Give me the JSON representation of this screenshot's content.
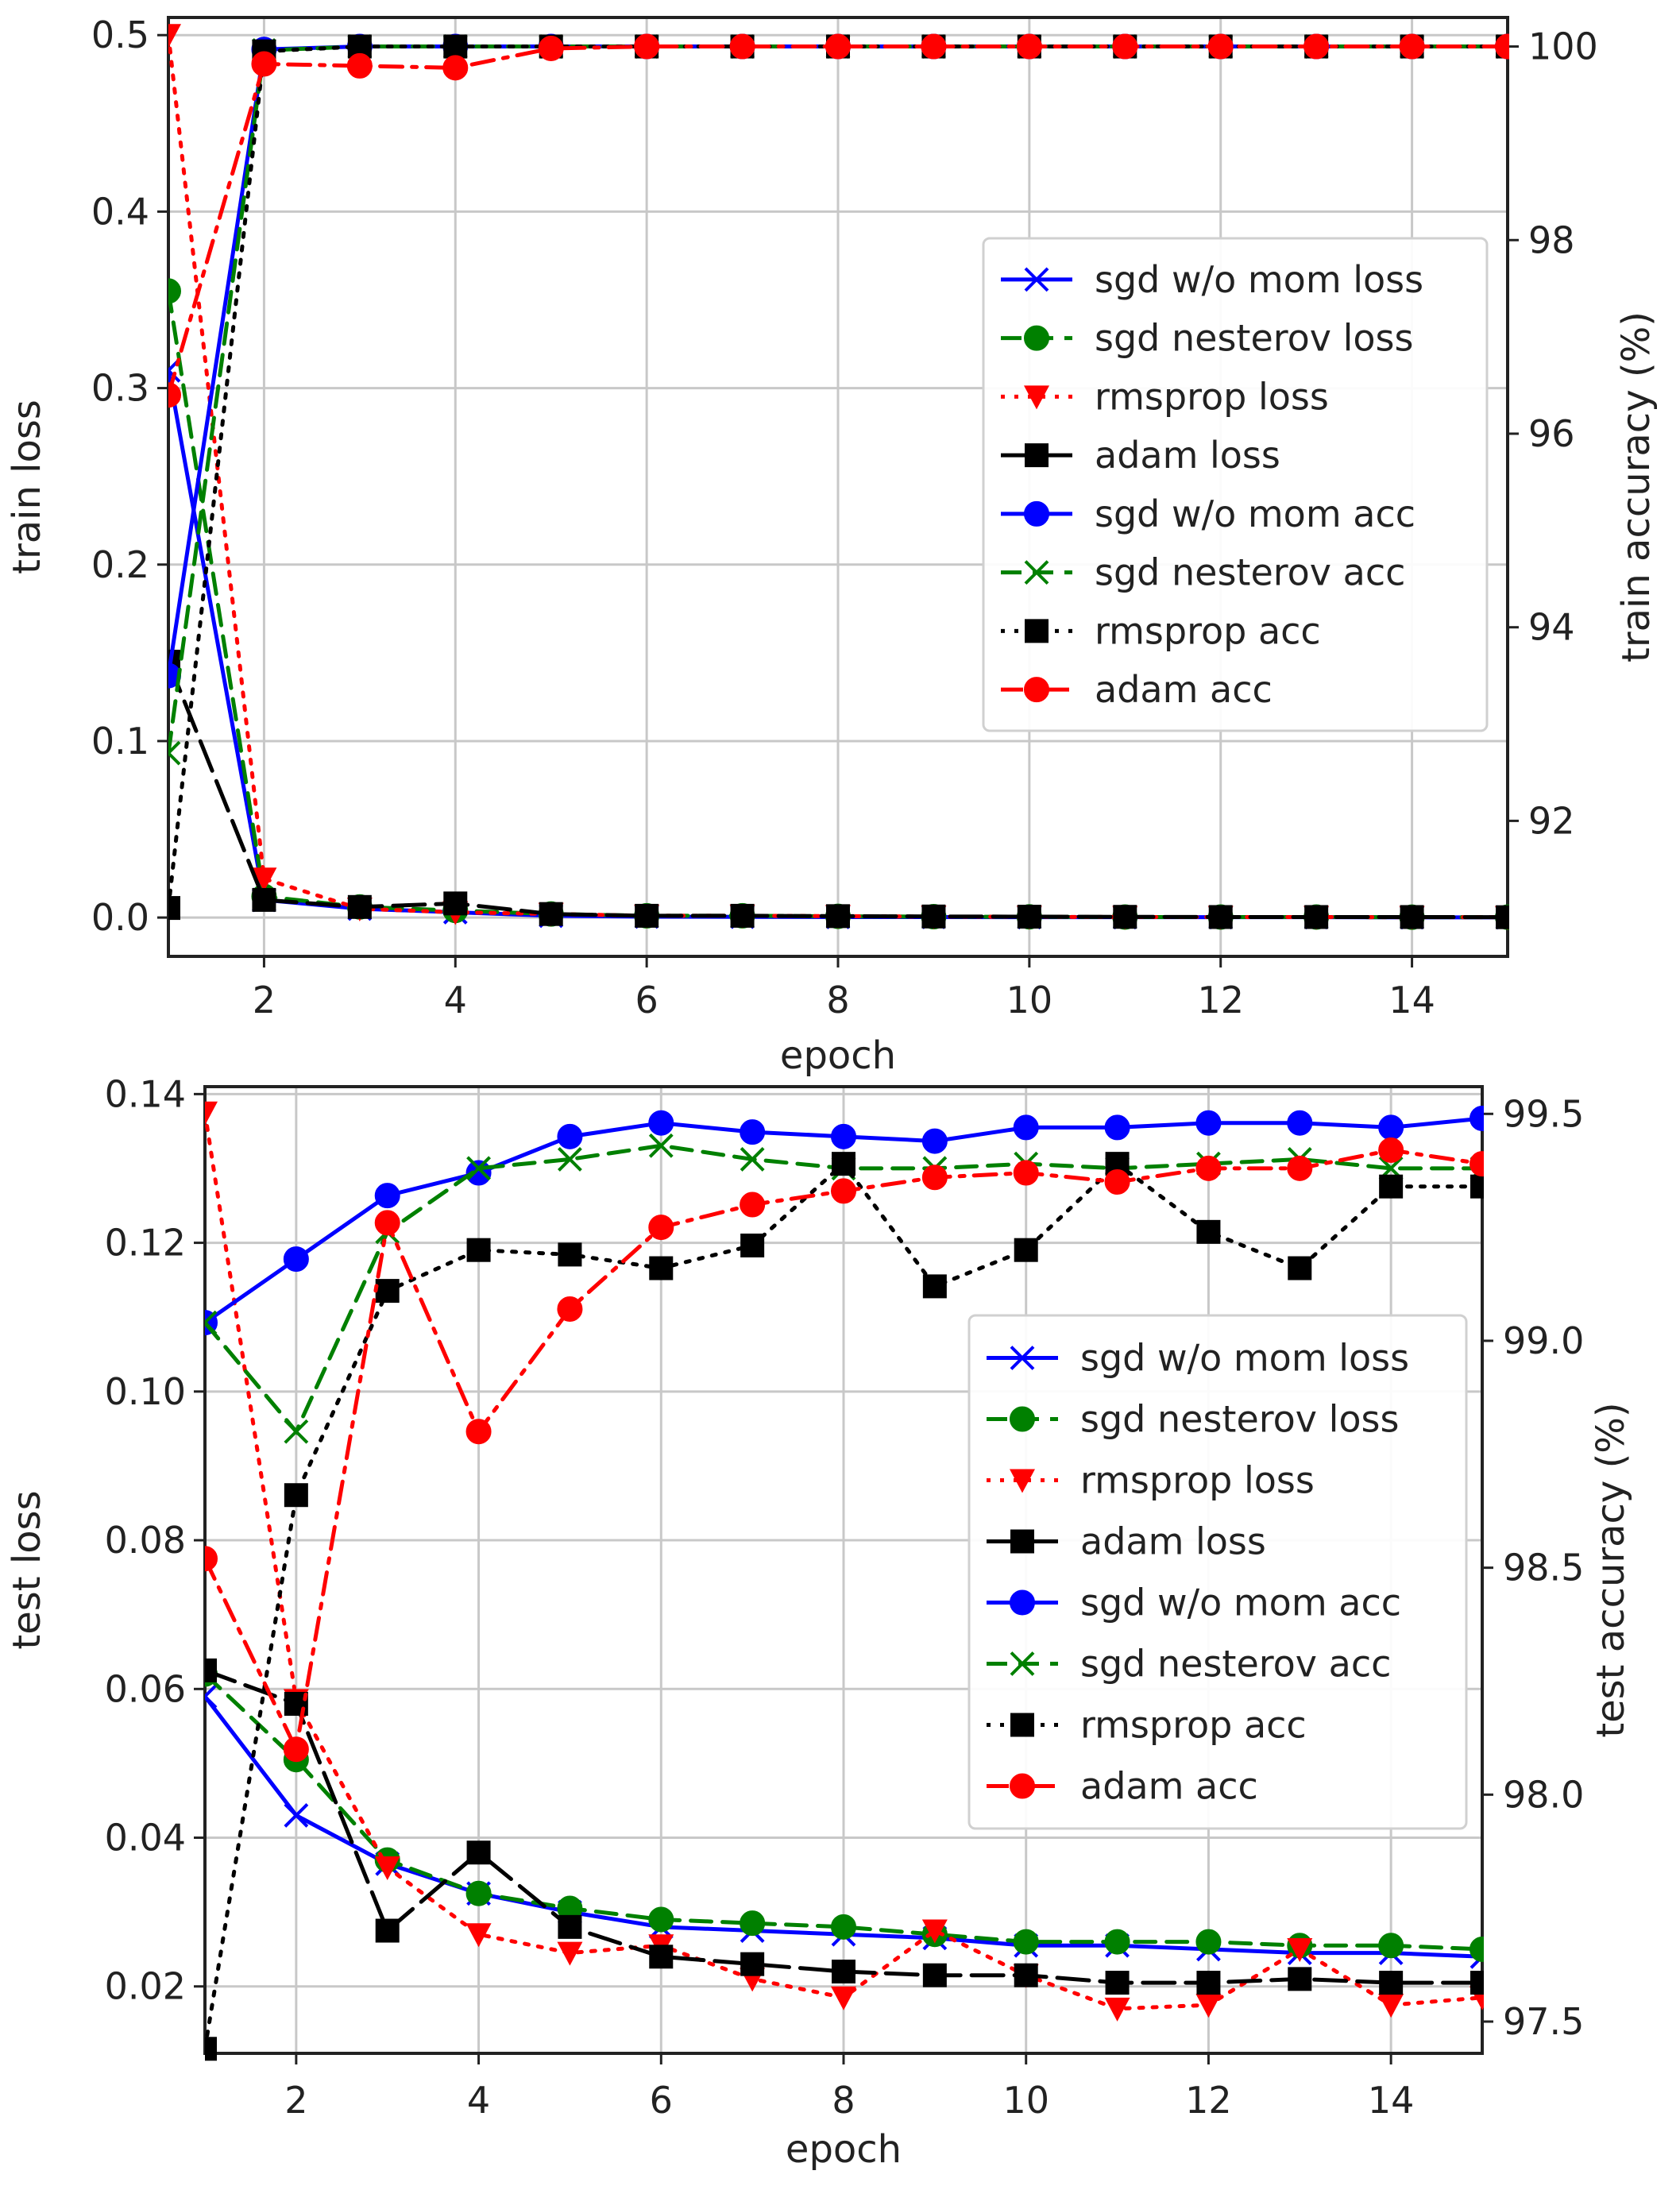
{
  "chart_data": [
    {
      "type": "line",
      "id": "train",
      "xlabel": "epoch",
      "ylabel": "train loss",
      "y2label": "train accuracy (%)",
      "xlim": [
        1,
        15
      ],
      "ylim": [
        -0.022,
        0.51
      ],
      "y2lim": [
        90.6,
        100.3
      ],
      "xticks": [
        2,
        4,
        6,
        8,
        10,
        12,
        14
      ],
      "yticks": [
        0.0,
        0.1,
        0.2,
        0.3,
        0.4,
        0.5
      ],
      "ytick_labels": [
        "0.0",
        "0.1",
        "0.2",
        "0.3",
        "0.4",
        "0.5"
      ],
      "y2ticks": [
        92,
        94,
        96,
        98,
        100
      ],
      "y2tick_labels": [
        "92",
        "94",
        "96",
        "98",
        "100"
      ],
      "x": [
        1,
        2,
        3,
        4,
        5,
        6,
        7,
        8,
        9,
        10,
        11,
        12,
        13,
        14,
        15
      ],
      "legend_position": "center-right",
      "series": [
        {
          "name": "sgd w/o mom loss",
          "axis": "left",
          "color": "#0000ff",
          "dash": "",
          "marker": "x",
          "values": [
            0.31,
            0.01,
            0.005,
            0.003,
            0.001,
            0.0005,
            0.0004,
            0.0003,
            0.0003,
            0.0002,
            0.0002,
            0.0002,
            0.0002,
            0.0001,
            0.0001
          ]
        },
        {
          "name": "sgd nesterov loss",
          "axis": "left",
          "color": "#008000",
          "dash": "dash",
          "marker": "o",
          "values": [
            0.355,
            0.012,
            0.006,
            0.004,
            0.002,
            0.001,
            0.001,
            0.0007,
            0.0005,
            0.0004,
            0.0003,
            0.0003,
            0.0003,
            0.0002,
            0.0002
          ]
        },
        {
          "name": "rmsprop loss",
          "axis": "left",
          "color": "#ff0000",
          "dash": "dot",
          "marker": "v",
          "values": [
            0.5,
            0.022,
            0.005,
            0.003,
            0.002,
            0.001,
            0.001,
            0.0008,
            0.0005,
            0.0004,
            0.0003,
            0.0003,
            0.0003,
            0.0002,
            0.0002
          ]
        },
        {
          "name": "adam loss",
          "axis": "left",
          "color": "#000000",
          "dash": "longdash",
          "marker": "s",
          "values": [
            0.145,
            0.01,
            0.006,
            0.008,
            0.002,
            0.001,
            0.001,
            0.0008,
            0.0006,
            0.0005,
            0.0004,
            0.0003,
            0.0003,
            0.0003,
            0.0002
          ]
        },
        {
          "name": "sgd w/o mom acc",
          "axis": "right",
          "color": "#0000ff",
          "dash": "",
          "marker": "o",
          "values": [
            93.5,
            99.97,
            100,
            100,
            100,
            100,
            100,
            100,
            100,
            100,
            100,
            100,
            100,
            100,
            100
          ]
        },
        {
          "name": "sgd nesterov acc",
          "axis": "right",
          "color": "#008000",
          "dash": "dash",
          "marker": "x",
          "values": [
            92.7,
            99.96,
            100,
            100,
            100,
            100,
            100,
            100,
            100,
            100,
            100,
            100,
            100,
            100,
            100
          ]
        },
        {
          "name": "rmsprop acc",
          "axis": "right",
          "color": "#000000",
          "dash": "dot",
          "marker": "s",
          "values": [
            91.1,
            99.95,
            100,
            100,
            100,
            100,
            100,
            100,
            100,
            100,
            100,
            100,
            100,
            100,
            100
          ]
        },
        {
          "name": "adam acc",
          "axis": "right",
          "color": "#ff0000",
          "dash": "dashdot",
          "marker": "o",
          "values": [
            96.4,
            99.82,
            99.8,
            99.78,
            99.98,
            100,
            100,
            100,
            100,
            100,
            100,
            100,
            100,
            100,
            100
          ]
        }
      ]
    },
    {
      "type": "line",
      "id": "test",
      "xlabel": "epoch",
      "ylabel": "test loss",
      "y2label": "test accuracy (%)",
      "xlim": [
        1,
        15
      ],
      "ylim": [
        0.011,
        0.141
      ],
      "y2lim": [
        97.43,
        99.56
      ],
      "xticks": [
        2,
        4,
        6,
        8,
        10,
        12,
        14
      ],
      "yticks": [
        0.02,
        0.04,
        0.06,
        0.08,
        0.1,
        0.12,
        0.14
      ],
      "ytick_labels": [
        "0.02",
        "0.04",
        "0.06",
        "0.08",
        "0.10",
        "0.12",
        "0.14"
      ],
      "y2ticks": [
        97.5,
        98.0,
        98.5,
        99.0,
        99.5
      ],
      "y2tick_labels": [
        "97.5",
        "98.0",
        "98.5",
        "99.0",
        "99.5"
      ],
      "x": [
        1,
        2,
        3,
        4,
        5,
        6,
        7,
        8,
        9,
        10,
        11,
        12,
        13,
        14,
        15
      ],
      "legend_position": "center-right",
      "series": [
        {
          "name": "sgd w/o mom loss",
          "axis": "left",
          "color": "#0000ff",
          "dash": "",
          "marker": "x",
          "values": [
            0.059,
            0.043,
            0.0365,
            0.0325,
            0.03,
            0.028,
            0.0275,
            0.027,
            0.0265,
            0.0255,
            0.0255,
            0.025,
            0.0245,
            0.0245,
            0.024
          ]
        },
        {
          "name": "sgd nesterov loss",
          "axis": "left",
          "color": "#008000",
          "dash": "dash",
          "marker": "o",
          "values": [
            0.062,
            0.0505,
            0.037,
            0.0325,
            0.0305,
            0.029,
            0.0285,
            0.028,
            0.027,
            0.026,
            0.026,
            0.026,
            0.0255,
            0.0255,
            0.025
          ]
        },
        {
          "name": "rmsprop loss",
          "axis": "left",
          "color": "#ff0000",
          "dash": "dot",
          "marker": "v",
          "values": [
            0.1375,
            0.0585,
            0.036,
            0.027,
            0.0245,
            0.0255,
            0.021,
            0.0185,
            0.0275,
            0.0215,
            0.017,
            0.0175,
            0.025,
            0.0175,
            0.0185
          ]
        },
        {
          "name": "adam loss",
          "axis": "left",
          "color": "#000000",
          "dash": "longdash",
          "marker": "s",
          "values": [
            0.0625,
            0.058,
            0.0275,
            0.038,
            0.028,
            0.024,
            0.023,
            0.022,
            0.0215,
            0.0215,
            0.0205,
            0.0205,
            0.021,
            0.0205,
            0.0205
          ]
        },
        {
          "name": "sgd w/o mom acc",
          "axis": "right",
          "color": "#0000ff",
          "dash": "",
          "marker": "o",
          "values": [
            99.04,
            99.18,
            99.32,
            99.37,
            99.45,
            99.48,
            99.46,
            99.45,
            99.44,
            99.47,
            99.47,
            99.48,
            99.48,
            99.47,
            99.49
          ]
        },
        {
          "name": "sgd nesterov acc",
          "axis": "right",
          "color": "#008000",
          "dash": "dash",
          "marker": "x",
          "values": [
            99.04,
            98.8,
            99.24,
            99.38,
            99.4,
            99.43,
            99.4,
            99.38,
            99.38,
            99.39,
            99.38,
            99.39,
            99.4,
            99.38,
            99.38
          ]
        },
        {
          "name": "rmsprop acc",
          "axis": "right",
          "color": "#000000",
          "dash": "dot",
          "marker": "s",
          "values": [
            97.44,
            98.66,
            99.11,
            99.2,
            99.19,
            99.16,
            99.21,
            99.39,
            99.12,
            99.2,
            99.39,
            99.24,
            99.16,
            99.34,
            99.34
          ]
        },
        {
          "name": "adam acc",
          "axis": "right",
          "color": "#ff0000",
          "dash": "dashdot",
          "marker": "o",
          "values": [
            98.52,
            98.1,
            99.26,
            98.8,
            99.07,
            99.25,
            99.3,
            99.33,
            99.36,
            99.37,
            99.35,
            99.38,
            99.38,
            99.42,
            99.39
          ]
        }
      ]
    }
  ]
}
